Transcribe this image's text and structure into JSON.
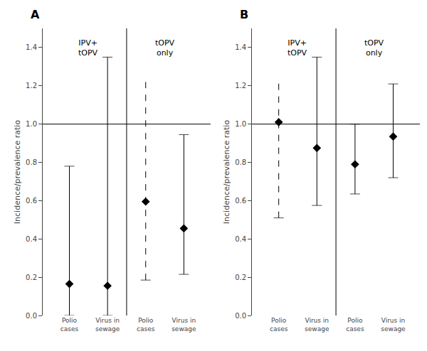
{
  "chart_data": [
    {
      "type": "scatter",
      "title": "A",
      "categories": [
        "Polio\ncases",
        "Virus in\nsewage",
        "Polio\ncases",
        "Virus in\nsewage"
      ],
      "values": [
        0.165,
        0.155,
        0.595,
        0.455
      ],
      "ci_low": [
        0.0,
        0.0,
        0.185,
        0.215
      ],
      "ci_high": [
        0.78,
        1.35,
        1.22,
        0.945
      ],
      "ci_line_style": [
        "solid",
        "solid",
        "dashed",
        "solid"
      ],
      "annotations": [
        "IPV+\ntOPV",
        "tOPV\nonly"
      ],
      "hline": 1.0,
      "ylabel": "Incidence/prevalence ratio",
      "ylim": [
        0.0,
        1.5
      ],
      "yticks": [
        {
          "value": 0.0,
          "label": "0.0"
        },
        0.2,
        0.4,
        0.6,
        0.8,
        {
          "value": 1.0,
          "label": "1.0"
        },
        1.2,
        1.4
      ],
      "color": "black",
      "marker": "diamond",
      "grid": false
    },
    {
      "type": "scatter",
      "title": "B",
      "categories": [
        "Polio\ncases",
        "Virus in\nsewage",
        "Polio\ncases",
        "Virus in\nsewage"
      ],
      "values": [
        1.01,
        0.875,
        0.79,
        0.935
      ],
      "ci_low": [
        0.51,
        0.575,
        0.635,
        0.72
      ],
      "ci_high": [
        1.22,
        1.35,
        1.0,
        1.21
      ],
      "ci_line_style": [
        "dashed",
        "solid",
        "solid",
        "solid"
      ],
      "annotations": [
        "IPV+\ntOPV",
        "tOPV\nonly"
      ],
      "hline": 1.0,
      "ylabel": "Incidence/prevalence ratio",
      "ylim": [
        0.0,
        1.5
      ],
      "yticks": [
        {
          "value": 0.0,
          "label": "0.0"
        },
        0.2,
        0.4,
        0.6,
        0.8,
        {
          "value": 1.0,
          "label": "1.0"
        },
        1.2,
        1.4
      ],
      "color": "black",
      "marker": "diamond",
      "grid": false
    }
  ]
}
